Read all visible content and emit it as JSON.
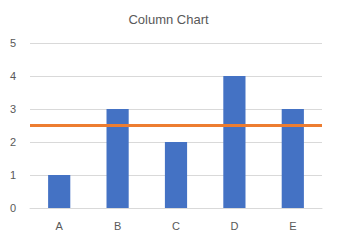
{
  "chart_data": {
    "type": "bar",
    "title": "Column Chart",
    "categories": [
      "A",
      "B",
      "C",
      "D",
      "E"
    ],
    "series": [
      {
        "type": "bar",
        "color": "#4472c4",
        "values": [
          1,
          3,
          2,
          4,
          3
        ]
      },
      {
        "type": "line",
        "color": "#ed7d31",
        "values": [
          2.5,
          2.5,
          2.5,
          2.5,
          2.5
        ]
      }
    ],
    "ylim": [
      0,
      5
    ],
    "yticks": [
      0,
      1,
      2,
      3,
      4,
      5
    ],
    "grid": true
  }
}
